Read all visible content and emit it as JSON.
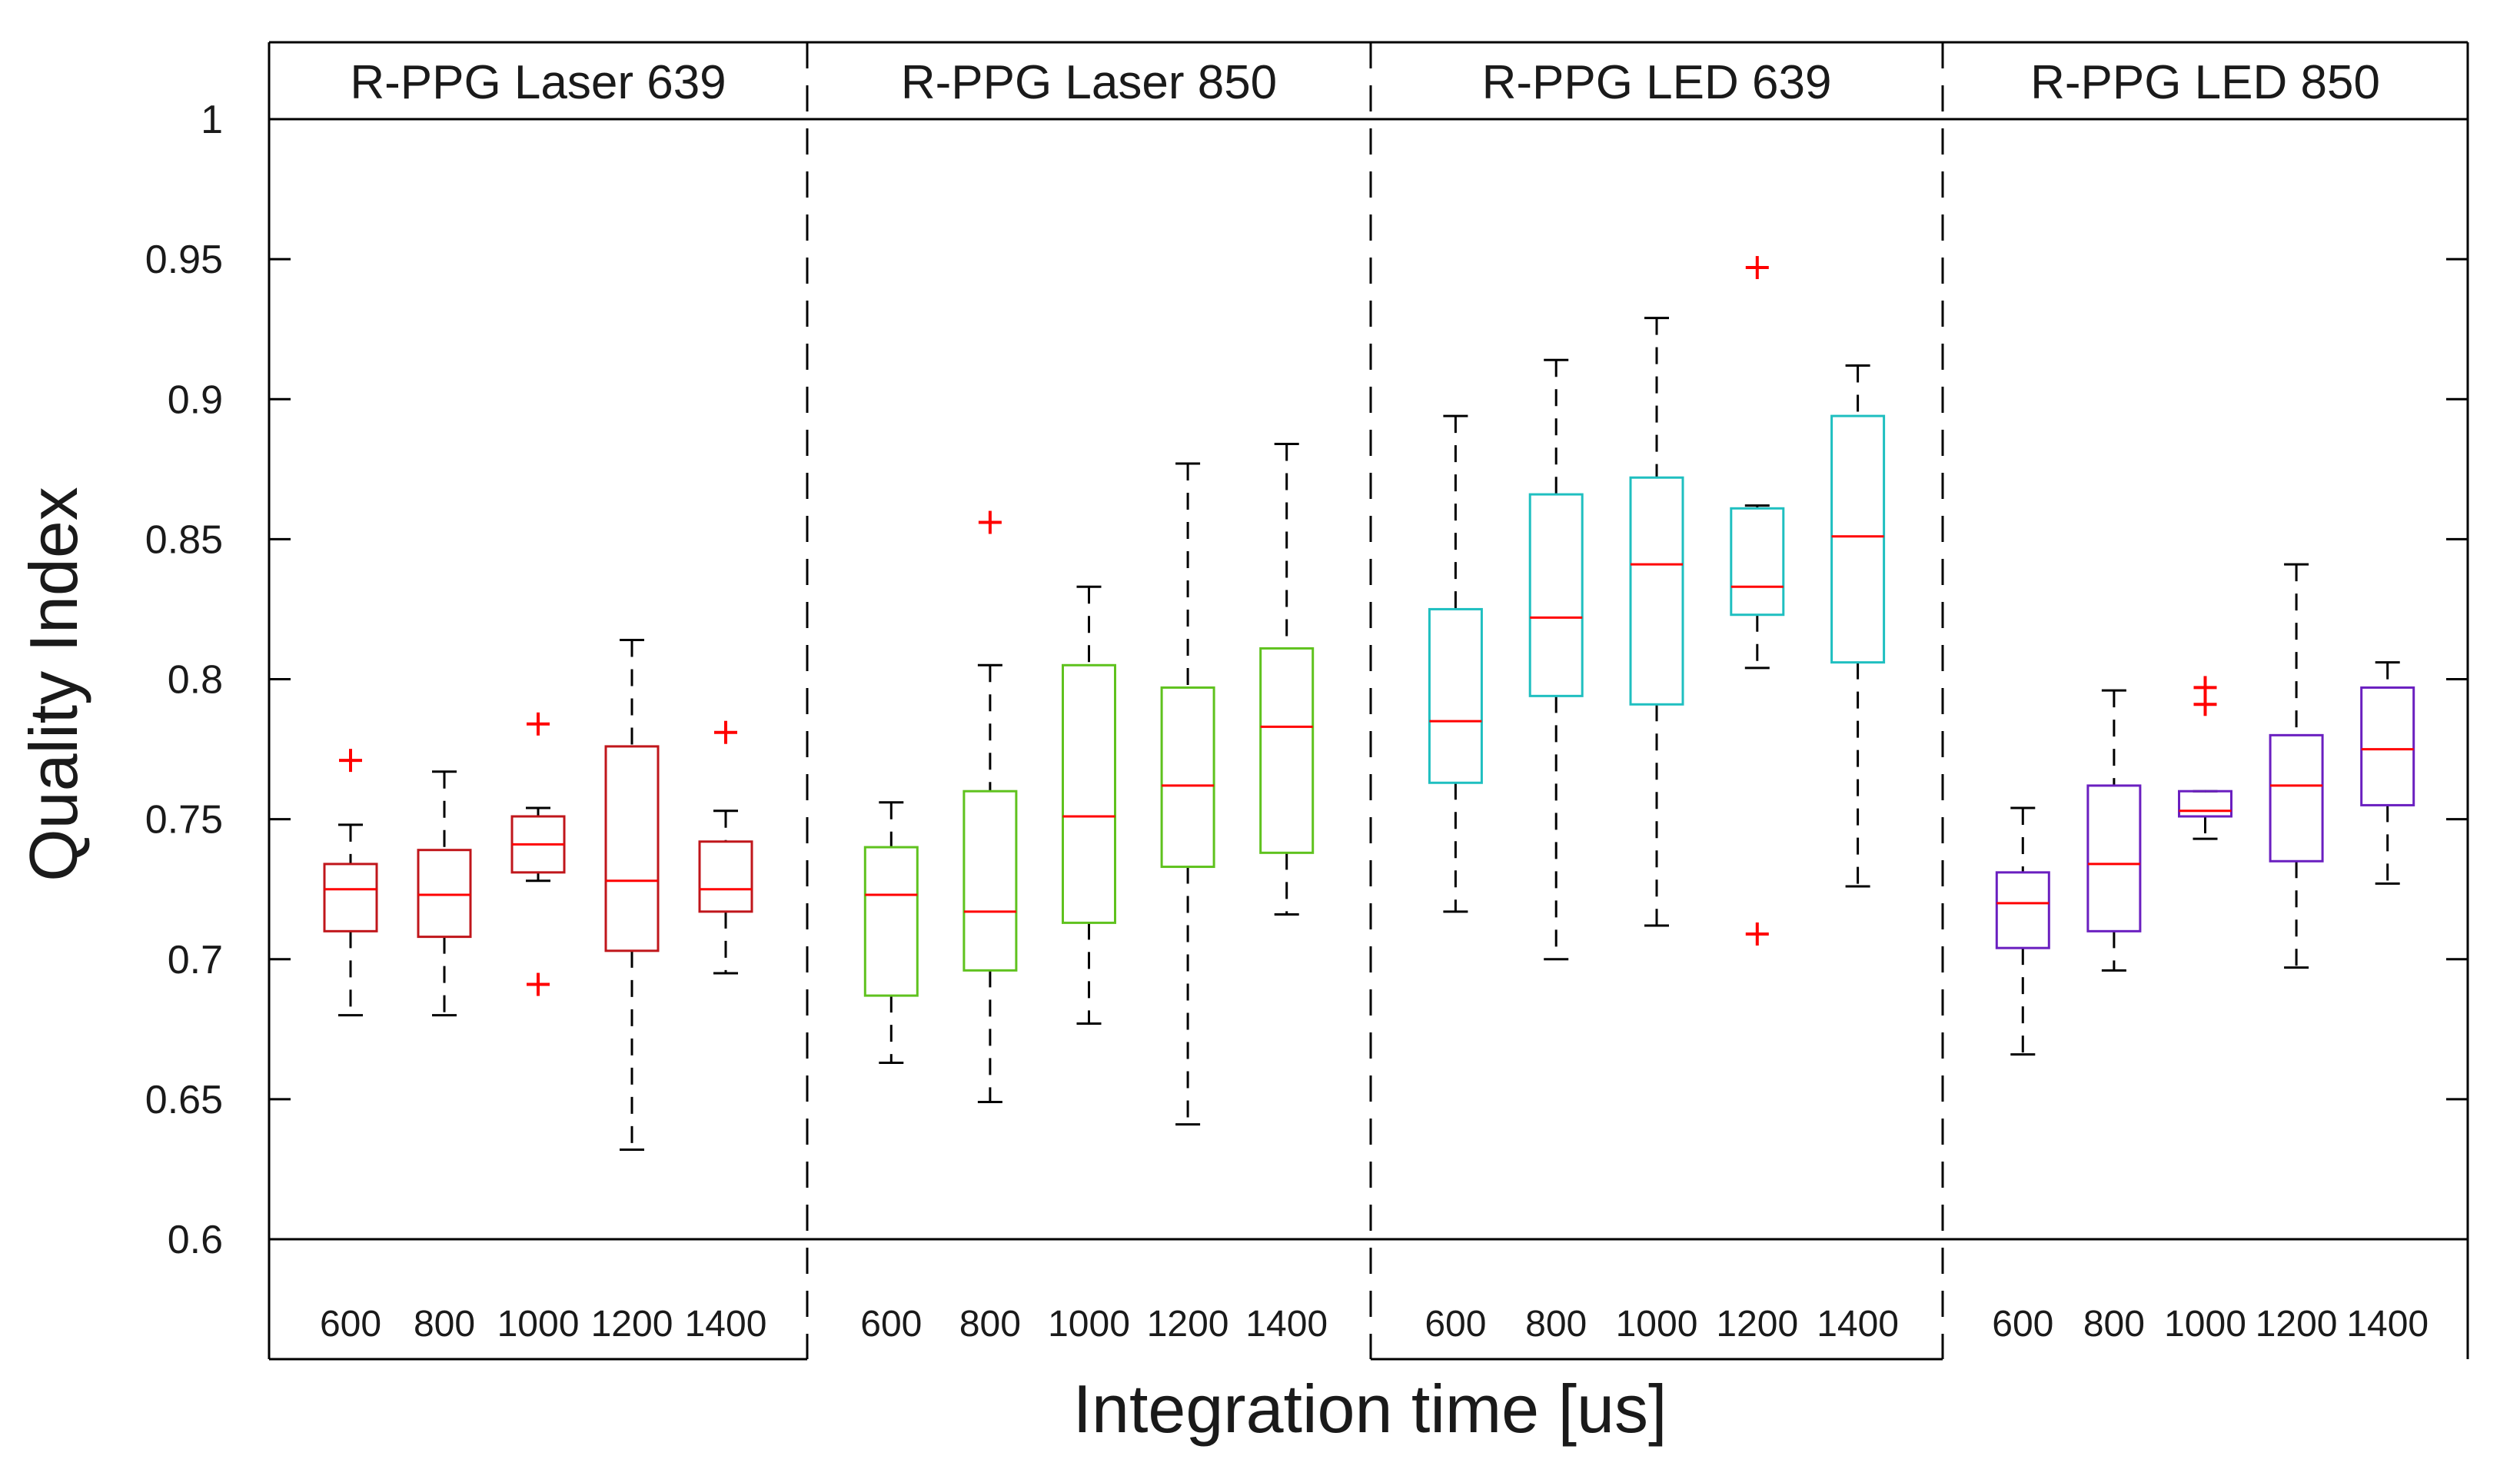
{
  "chart_data": {
    "type": "box",
    "ylabel": "Quality Index",
    "xlabel": "Integration time [us]",
    "ylim": [
      0.6,
      1.0
    ],
    "yticks": [
      "0.6",
      "0.65",
      "0.7",
      "0.75",
      "0.8",
      "0.85",
      "0.9",
      "0.95",
      "1"
    ],
    "categories": [
      "600",
      "800",
      "1000",
      "1200",
      "1400"
    ],
    "median_color": "#ff0000",
    "outlier_color": "#ff0000",
    "whisker_color": "#000000",
    "panels": [
      {
        "title": "R-PPG Laser 639",
        "color": "#c0161b",
        "boxes": [
          {
            "category": "600",
            "min": 0.68,
            "q1": 0.71,
            "median": 0.725,
            "q3": 0.734,
            "max": 0.748,
            "outliers": [
              0.771
            ]
          },
          {
            "category": "800",
            "min": 0.68,
            "q1": 0.708,
            "median": 0.723,
            "q3": 0.739,
            "max": 0.767,
            "outliers": []
          },
          {
            "category": "1000",
            "min": 0.728,
            "q1": 0.731,
            "median": 0.741,
            "q3": 0.751,
            "max": 0.754,
            "outliers": [
              0.784,
              0.691
            ]
          },
          {
            "category": "1200",
            "min": 0.632,
            "q1": 0.703,
            "median": 0.728,
            "q3": 0.776,
            "max": 0.814,
            "outliers": []
          },
          {
            "category": "1400",
            "min": 0.695,
            "q1": 0.717,
            "median": 0.725,
            "q3": 0.742,
            "max": 0.753,
            "outliers": [
              0.781
            ]
          }
        ]
      },
      {
        "title": "R-PPG Laser 850",
        "color": "#5fc21e",
        "boxes": [
          {
            "category": "600",
            "min": 0.663,
            "q1": 0.687,
            "median": 0.723,
            "q3": 0.74,
            "max": 0.756,
            "outliers": []
          },
          {
            "category": "800",
            "min": 0.649,
            "q1": 0.696,
            "median": 0.717,
            "q3": 0.76,
            "max": 0.805,
            "outliers": [
              0.856
            ]
          },
          {
            "category": "1000",
            "min": 0.677,
            "q1": 0.713,
            "median": 0.751,
            "q3": 0.805,
            "max": 0.833,
            "outliers": []
          },
          {
            "category": "1200",
            "min": 0.641,
            "q1": 0.733,
            "median": 0.762,
            "q3": 0.797,
            "max": 0.877,
            "outliers": []
          },
          {
            "category": "1400",
            "min": 0.716,
            "q1": 0.738,
            "median": 0.783,
            "q3": 0.811,
            "max": 0.884,
            "outliers": []
          }
        ]
      },
      {
        "title": "R-PPG LED 639",
        "color": "#1fbfc0",
        "boxes": [
          {
            "category": "600",
            "min": 0.717,
            "q1": 0.763,
            "median": 0.785,
            "q3": 0.825,
            "max": 0.894,
            "outliers": []
          },
          {
            "category": "800",
            "min": 0.7,
            "q1": 0.794,
            "median": 0.822,
            "q3": 0.866,
            "max": 0.914,
            "outliers": []
          },
          {
            "category": "1000",
            "min": 0.712,
            "q1": 0.791,
            "median": 0.841,
            "q3": 0.872,
            "max": 0.929,
            "outliers": []
          },
          {
            "category": "1200",
            "min": 0.804,
            "q1": 0.823,
            "median": 0.833,
            "q3": 0.861,
            "max": 0.862,
            "outliers": [
              0.947,
              0.709
            ]
          },
          {
            "category": "1400",
            "min": 0.726,
            "q1": 0.806,
            "median": 0.851,
            "q3": 0.894,
            "max": 0.912,
            "outliers": []
          }
        ]
      },
      {
        "title": "R-PPG LED 850",
        "color": "#6a1fc0",
        "boxes": [
          {
            "category": "600",
            "min": 0.666,
            "q1": 0.704,
            "median": 0.72,
            "q3": 0.731,
            "max": 0.754,
            "outliers": []
          },
          {
            "category": "800",
            "min": 0.696,
            "q1": 0.71,
            "median": 0.734,
            "q3": 0.762,
            "max": 0.796,
            "outliers": []
          },
          {
            "category": "1000",
            "min": 0.743,
            "q1": 0.751,
            "median": 0.753,
            "q3": 0.76,
            "max": 0.76,
            "outliers": [
              0.797,
              0.791
            ]
          },
          {
            "category": "1200",
            "min": 0.697,
            "q1": 0.735,
            "median": 0.762,
            "q3": 0.78,
            "max": 0.841,
            "outliers": []
          },
          {
            "category": "1400",
            "min": 0.727,
            "q1": 0.755,
            "median": 0.775,
            "q3": 0.797,
            "max": 0.806,
            "outliers": []
          }
        ]
      }
    ]
  }
}
